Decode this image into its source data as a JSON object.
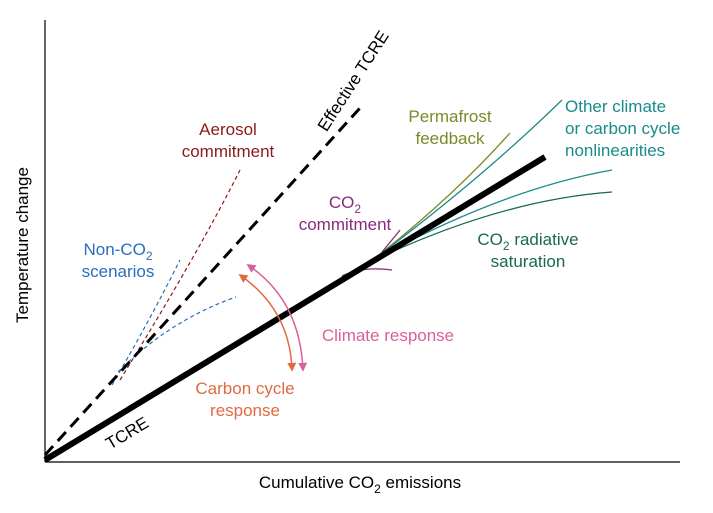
{
  "axes": {
    "x_label": {
      "parts": [
        "Cumulative CO",
        "2",
        " emissions"
      ]
    },
    "y_label": "Temperature change"
  },
  "labels": {
    "tcre": "TCRE",
    "effective_tcre": "Effective TCRE",
    "aerosol": [
      "Aerosol",
      "commitment"
    ],
    "non_co2": [
      {
        "parts": [
          "Non-CO",
          "2"
        ]
      },
      {
        "parts": [
          "scenarios"
        ]
      }
    ],
    "co2_commitment": [
      {
        "parts": [
          "CO",
          "2"
        ]
      },
      {
        "parts": [
          "commitment"
        ]
      }
    ],
    "permafrost": [
      "Permafrost",
      "feedback"
    ],
    "other": [
      "Other climate",
      "or carbon cycle",
      "nonlinearities"
    ],
    "saturation": [
      {
        "parts": [
          "CO",
          "2",
          " radiative"
        ]
      },
      {
        "parts": [
          "saturation"
        ]
      }
    ],
    "climate_response": "Climate response",
    "carbon_cycle": [
      "Carbon cycle",
      "response"
    ]
  }
}
